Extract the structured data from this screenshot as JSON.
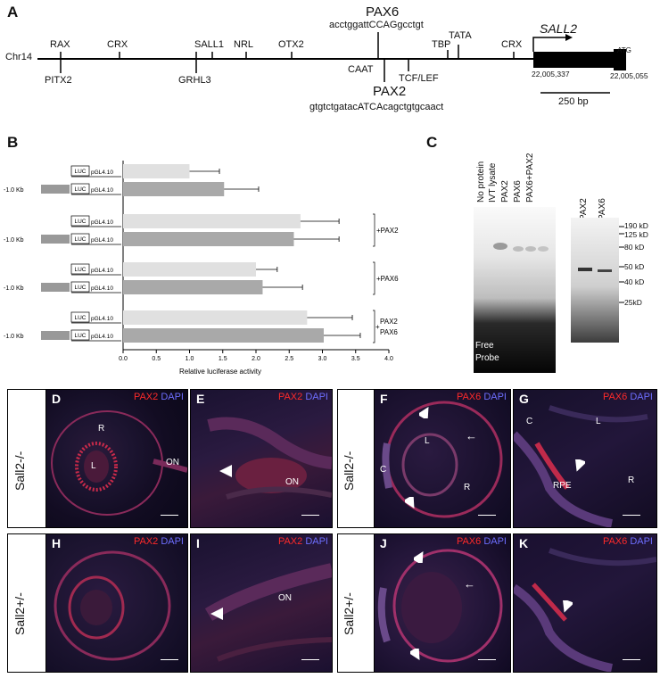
{
  "panelA": {
    "label": "A",
    "chrom": "Chr14",
    "above": [
      "RAX",
      "CRX",
      "SALL1",
      "NRL",
      "OTX2",
      "TBP",
      "TATA",
      "CRX"
    ],
    "below": [
      "PITX2",
      "GRHL3",
      "CAAT",
      "TCF/LEF"
    ],
    "pax6": {
      "name": "PAX6",
      "seq": "acctggattCCAGgcctgt"
    },
    "pax2": {
      "name": "PAX2",
      "seq": "gtgtctgatacATCAcagctgtgcaact"
    },
    "gene": "SALL2",
    "atg": "ATG",
    "coord1": "22,005,337",
    "coord2": "22,005,055",
    "scale": "250 bp"
  },
  "panelB": {
    "label": "B",
    "luc": "LUC",
    "vector": "pGL4.10",
    "promoter": "-1.0 Kb",
    "xlabel": "Relative luciferase activity",
    "ticks": [
      "0.0",
      "0.5",
      "1.0",
      "1.5",
      "2.0",
      "2.5",
      "3.0",
      "3.5",
      "4.0"
    ],
    "groups": [
      "",
      "+PAX2",
      "+PAX6",
      "PAX2\nPAX6"
    ],
    "plus": "+"
  },
  "chart_data": {
    "type": "bar",
    "orientation": "horizontal",
    "xlabel": "Relative luciferase activity",
    "xlim": [
      0,
      4.0
    ],
    "categories": [
      "pGL4.10",
      "-1.0 Kb pGL4.10",
      "pGL4.10 +PAX2",
      "-1.0 Kb pGL4.10 +PAX2",
      "pGL4.10 +PAX6",
      "-1.0 Kb pGL4.10 +PAX6",
      "pGL4.10 +PAX2 PAX6",
      "-1.0 Kb pGL4.10 +PAX2 PAX6"
    ],
    "values": [
      1.0,
      1.52,
      2.67,
      2.57,
      2.0,
      2.1,
      2.77,
      3.02
    ],
    "errors": [
      0.45,
      0.52,
      0.58,
      0.68,
      0.32,
      0.6,
      0.68,
      0.55
    ],
    "colors": [
      "#e0e0e0",
      "#a9a9a9"
    ]
  },
  "panelC": {
    "label": "C",
    "lanes": [
      "No protein",
      "IVT lysate",
      "PAX2",
      "PAX6",
      "PAX6+PAX2"
    ],
    "wb_lanes": [
      "PAX2",
      "PAX6"
    ],
    "markers": [
      "190 kD",
      "125 kD",
      "80 kD",
      "50 kD",
      "40 kD",
      "25kD"
    ],
    "free": "Free",
    "probe": "Probe"
  },
  "micro": {
    "genotype_top": "Sall2-/-",
    "genotype_bot": "Sall2+/-",
    "dapi": "DAPI",
    "panels": [
      {
        "id": "D",
        "stain": "PAX2"
      },
      {
        "id": "E",
        "stain": "PAX2"
      },
      {
        "id": "F",
        "stain": "PAX6"
      },
      {
        "id": "G",
        "stain": "PAX6"
      },
      {
        "id": "H",
        "stain": "PAX2"
      },
      {
        "id": "I",
        "stain": "PAX2"
      },
      {
        "id": "J",
        "stain": "PAX6"
      },
      {
        "id": "K",
        "stain": "PAX6"
      }
    ],
    "inner": {
      "R": "R",
      "L": "L",
      "ON": "ON",
      "C": "C",
      "RPE": "RPE"
    }
  }
}
